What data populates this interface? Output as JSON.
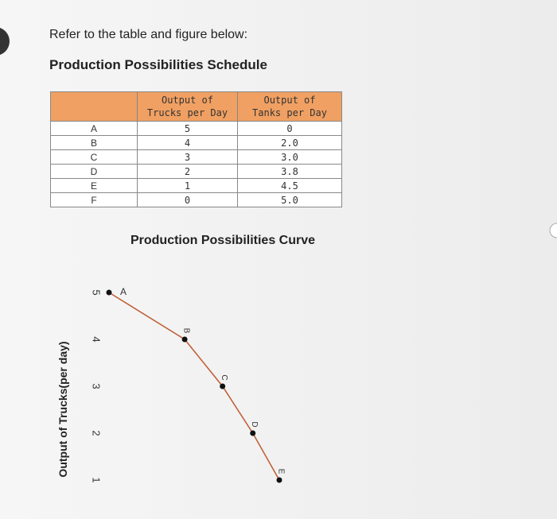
{
  "intro": "Refer to the table and figure below:",
  "table": {
    "title": "Production Possibilities Schedule",
    "headers": [
      "",
      "Output of\nTrucks per Day",
      "Output of\nTanks per Day"
    ],
    "rows": [
      [
        "A",
        "5",
        "0"
      ],
      [
        "B",
        "4",
        "2.0"
      ],
      [
        "C",
        "3",
        "3.0"
      ],
      [
        "D",
        "2",
        "3.8"
      ],
      [
        "E",
        "1",
        "4.5"
      ],
      [
        "F",
        "0",
        "5.0"
      ]
    ]
  },
  "chart_data": {
    "type": "line",
    "title": "Production Possibilities Curve",
    "y_label": "Output of Trucks(per day)",
    "point_labels": [
      "A",
      "B",
      "C",
      "D",
      "E"
    ],
    "x": [
      0,
      2.0,
      3.0,
      3.8,
      4.5
    ],
    "values": [
      5,
      4,
      3,
      2,
      1
    ],
    "color": "#c0613a",
    "xlim": [
      0,
      4.5
    ],
    "ylim": [
      1,
      5
    ],
    "yticks": [
      1,
      2,
      3,
      4,
      5
    ]
  }
}
